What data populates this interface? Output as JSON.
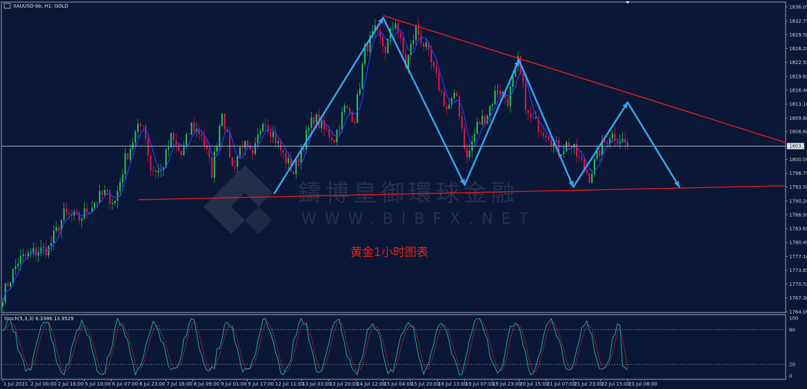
{
  "header": {
    "symbol_info": "XAUUSD-bb, H1: GOLD"
  },
  "annotation": "黄金1小时图表",
  "watermark": {
    "cn": "鑄博皇御環球金融",
    "en": "WWW.BIBFX.NET"
  },
  "stoch_panel": {
    "label": "Stoch(5,3,3) 8.3386 13.9529",
    "levels": [
      "100",
      "80",
      "20",
      "0"
    ]
  },
  "colors": {
    "background": "#0b1736",
    "grid": "#3a4a6e",
    "bull_candle": "#2ec45a",
    "bear_candle": "#e8174a",
    "ma_line": "#2a3cff",
    "trendline": "#e81d1d",
    "wave": "#3aa2ec",
    "stoch_main": "#2aa6a0",
    "stoch_signal": "#d23c3c"
  },
  "chart_data": {
    "type": "candlestick",
    "price_axis": {
      "min": 1764.0,
      "max": 1836.05,
      "labels": [
        "1836.05",
        "1832.75",
        "1829.50",
        "1826.20",
        "1822.95",
        "1819.65",
        "1816.40",
        "1813.10",
        "1809.80",
        "1806.60",
        "1803.17",
        "1800.00",
        "1796.75",
        "1793.50",
        "1790.20",
        "1786.95",
        "1783.65",
        "1780.40",
        "1777.10",
        "1773.85",
        "1770.55",
        "1767.30",
        "1764.00"
      ],
      "current_price": "1803.17"
    },
    "time_axis": {
      "labels": [
        "1 Jul 2021",
        "2 Jul 00:00",
        "2 Jul 16:00",
        "5 Jul 10:00",
        "6 Jul 07:00",
        "6 Jul 23:00",
        "7 Jul 16:00",
        "8 Jul 09:00",
        "9 Jul 01:00",
        "9 Jul 17:00",
        "12 Jul 11:00",
        "13 Jul 03:00",
        "13 Jul 20:00",
        "14 Jul 12:00",
        "15 Jul 04:00",
        "15 Jul 20:00",
        "16 Jul 13:00",
        "19 Jul 07:00",
        "19 Jul 23:00",
        "20 Jul 15:00",
        "21 Jul 07:00",
        "21 Jul 23:00",
        "22 Jul 15:00",
        "23 Jul 08:00"
      ]
    },
    "trendlines": [
      {
        "name": "resistance",
        "from": {
          "time": "15 Jul 04:00",
          "price": 1834.0
        },
        "to": {
          "time": "right-edge",
          "price": 1804.0
        }
      },
      {
        "name": "support",
        "from": {
          "time": "6 Jul 23:00",
          "price": 1790.5
        },
        "to": {
          "time": "right-edge",
          "price": 1793.8
        }
      }
    ],
    "wave_path": [
      {
        "time": "12 Jul 11:00",
        "price": 1792.0
      },
      {
        "time": "15 Jul 04:00",
        "price": 1833.5
      },
      {
        "time": "19 Jul 07:00",
        "price": 1794.0
      },
      {
        "time": "20 Jul 15:00",
        "price": 1823.5
      },
      {
        "time": "21 Jul 23:00",
        "price": 1793.5
      },
      {
        "time": "23 Jul 08:00",
        "price": 1813.5
      },
      {
        "time": "projection",
        "price": 1793.5
      }
    ],
    "series_waypoints": [
      {
        "i": 0,
        "p": 1768
      },
      {
        "i": 6,
        "p": 1776
      },
      {
        "i": 12,
        "p": 1778
      },
      {
        "i": 18,
        "p": 1779
      },
      {
        "i": 24,
        "p": 1787
      },
      {
        "i": 30,
        "p": 1786
      },
      {
        "i": 36,
        "p": 1790
      },
      {
        "i": 40,
        "p": 1792
      },
      {
        "i": 44,
        "p": 1790
      },
      {
        "i": 48,
        "p": 1800
      },
      {
        "i": 52,
        "p": 1806
      },
      {
        "i": 55,
        "p": 1809
      },
      {
        "i": 58,
        "p": 1798
      },
      {
        "i": 62,
        "p": 1797
      },
      {
        "i": 66,
        "p": 1805
      },
      {
        "i": 70,
        "p": 1801
      },
      {
        "i": 74,
        "p": 1808
      },
      {
        "i": 78,
        "p": 1806
      },
      {
        "i": 82,
        "p": 1797
      },
      {
        "i": 86,
        "p": 1812
      },
      {
        "i": 90,
        "p": 1798
      },
      {
        "i": 94,
        "p": 1804
      },
      {
        "i": 98,
        "p": 1800
      },
      {
        "i": 102,
        "p": 1810
      },
      {
        "i": 106,
        "p": 1806
      },
      {
        "i": 110,
        "p": 1801
      },
      {
        "i": 114,
        "p": 1797
      },
      {
        "i": 118,
        "p": 1804
      },
      {
        "i": 122,
        "p": 1810
      },
      {
        "i": 126,
        "p": 1807
      },
      {
        "i": 130,
        "p": 1805
      },
      {
        "i": 134,
        "p": 1812
      },
      {
        "i": 138,
        "p": 1810
      },
      {
        "i": 142,
        "p": 1826
      },
      {
        "i": 146,
        "p": 1830
      },
      {
        "i": 150,
        "p": 1826
      },
      {
        "i": 154,
        "p": 1833
      },
      {
        "i": 158,
        "p": 1822
      },
      {
        "i": 162,
        "p": 1831
      },
      {
        "i": 166,
        "p": 1826
      },
      {
        "i": 170,
        "p": 1819
      },
      {
        "i": 174,
        "p": 1812
      },
      {
        "i": 178,
        "p": 1815
      },
      {
        "i": 182,
        "p": 1800
      },
      {
        "i": 186,
        "p": 1808
      },
      {
        "i": 190,
        "p": 1811
      },
      {
        "i": 194,
        "p": 1817
      },
      {
        "i": 198,
        "p": 1814
      },
      {
        "i": 202,
        "p": 1823
      },
      {
        "i": 206,
        "p": 1810
      },
      {
        "i": 210,
        "p": 1808
      },
      {
        "i": 214,
        "p": 1806
      },
      {
        "i": 218,
        "p": 1802
      },
      {
        "i": 222,
        "p": 1804
      },
      {
        "i": 226,
        "p": 1800
      },
      {
        "i": 230,
        "p": 1796
      },
      {
        "i": 234,
        "p": 1802
      },
      {
        "i": 238,
        "p": 1806
      },
      {
        "i": 242,
        "p": 1805
      },
      {
        "i": 245,
        "p": 1803.2
      }
    ],
    "candle_count": 246
  }
}
